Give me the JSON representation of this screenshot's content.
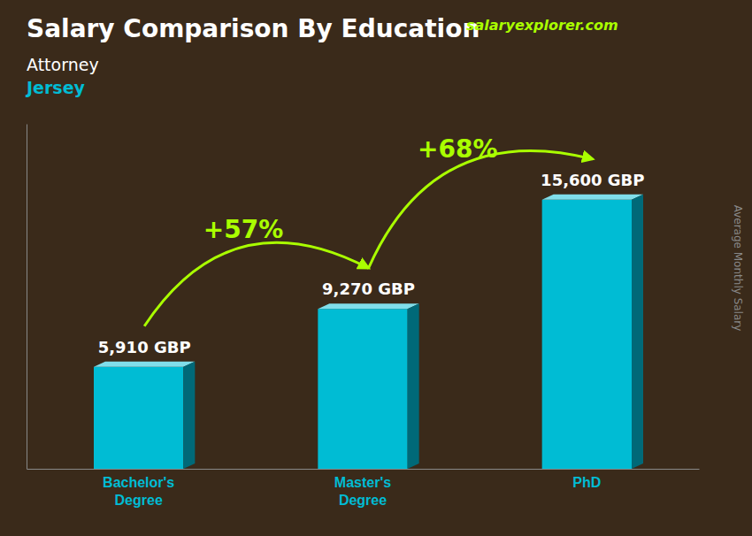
{
  "chart_data": {
    "type": "bar",
    "title": "Salary Comparison By Education",
    "subtitle": [
      "Attorney",
      "Jersey"
    ],
    "ylabel": "Average Monthly Salary",
    "categories": [
      "Bachelor's\nDegree",
      "Master's\nDegree",
      "PhD"
    ],
    "values": [
      5910,
      9270,
      15600
    ],
    "value_labels": [
      "5,910 GBP",
      "9,270 GBP",
      "15,600 GBP"
    ],
    "data_labels": true,
    "color": "#00bcd4",
    "ylim": [
      0,
      20000
    ],
    "tick_labels": "x",
    "annotations": [
      "+57%",
      "+68%",
      "salaryexplorer.com"
    ]
  }
}
